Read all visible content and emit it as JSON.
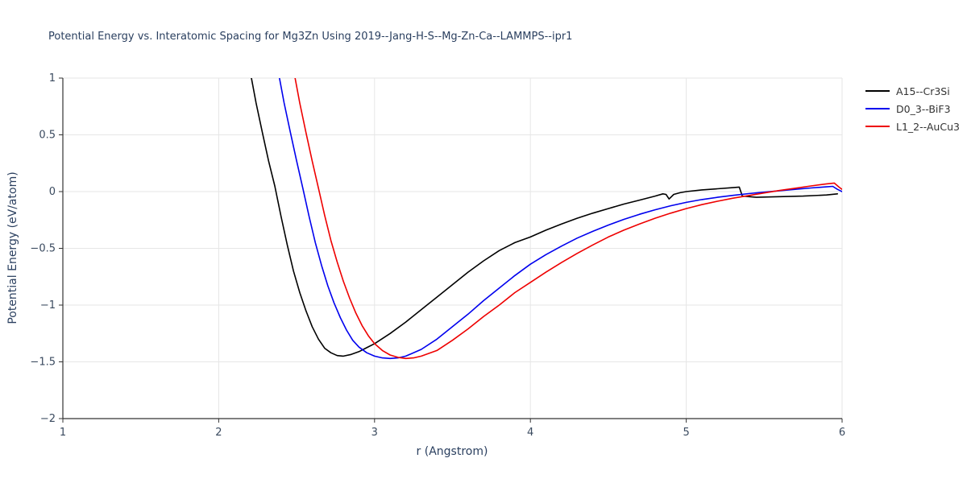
{
  "style": {
    "background": "#ffffff",
    "grid_color": "#e6e6e6",
    "spine_color": "#333333",
    "title_color": "#2a3f5f",
    "tick_label_color": "#3a4a5f"
  },
  "chart_data": {
    "type": "line",
    "title": "Potential Energy vs. Interatomic Spacing for Mg3Zn Using 2019--Jang-H-S--Mg-Zn-Ca--LAMMPS--ipr1",
    "xlabel": "r (Angstrom)",
    "ylabel": "Potential Energy (eV/atom)",
    "xlim": [
      1,
      6
    ],
    "ylim": [
      -2,
      1
    ],
    "xticks": [
      1,
      2,
      3,
      4,
      5,
      6
    ],
    "yticks": [
      -2,
      -1.5,
      -1,
      -0.5,
      0,
      0.5,
      1
    ],
    "xtick_labels": [
      "1",
      "2",
      "3",
      "4",
      "5",
      "6"
    ],
    "ytick_labels": [
      "−2",
      "−1.5",
      "−1",
      "−0.5",
      "0",
      "0.5",
      "1"
    ],
    "grid": true,
    "legend_position": "top-right-outside",
    "series": [
      {
        "name": "A15--Cr3Si",
        "color": "#000000",
        "points": [
          [
            2.18,
            1.25
          ],
          [
            2.21,
            1.0
          ],
          [
            2.24,
            0.78
          ],
          [
            2.28,
            0.52
          ],
          [
            2.32,
            0.27
          ],
          [
            2.36,
            0.05
          ],
          [
            2.4,
            -0.22
          ],
          [
            2.44,
            -0.47
          ],
          [
            2.48,
            -0.7
          ],
          [
            2.52,
            -0.89
          ],
          [
            2.56,
            -1.05
          ],
          [
            2.6,
            -1.19
          ],
          [
            2.64,
            -1.3
          ],
          [
            2.68,
            -1.38
          ],
          [
            2.72,
            -1.42
          ],
          [
            2.76,
            -1.445
          ],
          [
            2.8,
            -1.45
          ],
          [
            2.85,
            -1.435
          ],
          [
            2.9,
            -1.41
          ],
          [
            2.95,
            -1.375
          ],
          [
            3.0,
            -1.34
          ],
          [
            3.1,
            -1.25
          ],
          [
            3.2,
            -1.15
          ],
          [
            3.3,
            -1.04
          ],
          [
            3.4,
            -0.93
          ],
          [
            3.5,
            -0.82
          ],
          [
            3.6,
            -0.71
          ],
          [
            3.7,
            -0.61
          ],
          [
            3.8,
            -0.52
          ],
          [
            3.9,
            -0.45
          ],
          [
            4.0,
            -0.4
          ],
          [
            4.1,
            -0.34
          ],
          [
            4.2,
            -0.285
          ],
          [
            4.3,
            -0.235
          ],
          [
            4.4,
            -0.19
          ],
          [
            4.5,
            -0.15
          ],
          [
            4.6,
            -0.11
          ],
          [
            4.7,
            -0.075
          ],
          [
            4.8,
            -0.04
          ],
          [
            4.85,
            -0.02
          ],
          [
            4.87,
            -0.025
          ],
          [
            4.89,
            -0.065
          ],
          [
            4.92,
            -0.025
          ],
          [
            4.96,
            -0.01
          ],
          [
            5.0,
            0.0
          ],
          [
            5.1,
            0.015
          ],
          [
            5.2,
            0.025
          ],
          [
            5.3,
            0.035
          ],
          [
            5.34,
            0.04
          ],
          [
            5.36,
            -0.04
          ],
          [
            5.45,
            -0.05
          ],
          [
            5.6,
            -0.045
          ],
          [
            5.75,
            -0.04
          ],
          [
            5.9,
            -0.03
          ],
          [
            5.97,
            -0.02
          ]
        ]
      },
      {
        "name": "D0_3--BiF3",
        "color": "#0000ee",
        "points": [
          [
            2.36,
            1.25
          ],
          [
            2.39,
            1.0
          ],
          [
            2.42,
            0.78
          ],
          [
            2.46,
            0.52
          ],
          [
            2.5,
            0.27
          ],
          [
            2.54,
            0.03
          ],
          [
            2.58,
            -0.22
          ],
          [
            2.62,
            -0.45
          ],
          [
            2.66,
            -0.65
          ],
          [
            2.7,
            -0.83
          ],
          [
            2.74,
            -0.98
          ],
          [
            2.78,
            -1.11
          ],
          [
            2.82,
            -1.22
          ],
          [
            2.86,
            -1.31
          ],
          [
            2.9,
            -1.37
          ],
          [
            2.95,
            -1.42
          ],
          [
            3.0,
            -1.45
          ],
          [
            3.05,
            -1.465
          ],
          [
            3.1,
            -1.47
          ],
          [
            3.15,
            -1.465
          ],
          [
            3.2,
            -1.45
          ],
          [
            3.3,
            -1.39
          ],
          [
            3.4,
            -1.3
          ],
          [
            3.5,
            -1.19
          ],
          [
            3.6,
            -1.08
          ],
          [
            3.7,
            -0.96
          ],
          [
            3.8,
            -0.85
          ],
          [
            3.9,
            -0.74
          ],
          [
            4.0,
            -0.64
          ],
          [
            4.1,
            -0.555
          ],
          [
            4.2,
            -0.48
          ],
          [
            4.3,
            -0.41
          ],
          [
            4.4,
            -0.35
          ],
          [
            4.5,
            -0.295
          ],
          [
            4.6,
            -0.245
          ],
          [
            4.7,
            -0.2
          ],
          [
            4.8,
            -0.16
          ],
          [
            4.9,
            -0.125
          ],
          [
            5.0,
            -0.095
          ],
          [
            5.1,
            -0.07
          ],
          [
            5.2,
            -0.05
          ],
          [
            5.3,
            -0.033
          ],
          [
            5.4,
            -0.018
          ],
          [
            5.5,
            -0.005
          ],
          [
            5.6,
            0.008
          ],
          [
            5.7,
            0.02
          ],
          [
            5.8,
            0.032
          ],
          [
            5.9,
            0.042
          ],
          [
            5.94,
            0.046
          ],
          [
            5.97,
            0.02
          ],
          [
            6.0,
            0.0
          ]
        ]
      },
      {
        "name": "L1_2--AuCu3",
        "color": "#ee0000",
        "points": [
          [
            2.46,
            1.25
          ],
          [
            2.49,
            1.0
          ],
          [
            2.52,
            0.78
          ],
          [
            2.56,
            0.52
          ],
          [
            2.6,
            0.27
          ],
          [
            2.64,
            0.03
          ],
          [
            2.68,
            -0.21
          ],
          [
            2.72,
            -0.43
          ],
          [
            2.76,
            -0.62
          ],
          [
            2.8,
            -0.79
          ],
          [
            2.84,
            -0.94
          ],
          [
            2.88,
            -1.07
          ],
          [
            2.92,
            -1.18
          ],
          [
            2.96,
            -1.27
          ],
          [
            3.0,
            -1.34
          ],
          [
            3.05,
            -1.4
          ],
          [
            3.1,
            -1.44
          ],
          [
            3.15,
            -1.46
          ],
          [
            3.2,
            -1.47
          ],
          [
            3.25,
            -1.465
          ],
          [
            3.3,
            -1.45
          ],
          [
            3.4,
            -1.4
          ],
          [
            3.5,
            -1.31
          ],
          [
            3.6,
            -1.21
          ],
          [
            3.7,
            -1.1
          ],
          [
            3.8,
            -1.0
          ],
          [
            3.9,
            -0.89
          ],
          [
            4.0,
            -0.8
          ],
          [
            4.1,
            -0.71
          ],
          [
            4.2,
            -0.625
          ],
          [
            4.3,
            -0.545
          ],
          [
            4.4,
            -0.47
          ],
          [
            4.5,
            -0.4
          ],
          [
            4.6,
            -0.34
          ],
          [
            4.7,
            -0.285
          ],
          [
            4.8,
            -0.235
          ],
          [
            4.9,
            -0.19
          ],
          [
            5.0,
            -0.15
          ],
          [
            5.1,
            -0.115
          ],
          [
            5.2,
            -0.085
          ],
          [
            5.3,
            -0.058
          ],
          [
            5.4,
            -0.035
          ],
          [
            5.5,
            -0.012
          ],
          [
            5.6,
            0.01
          ],
          [
            5.7,
            0.03
          ],
          [
            5.8,
            0.05
          ],
          [
            5.9,
            0.068
          ],
          [
            5.95,
            0.075
          ],
          [
            5.98,
            0.04
          ],
          [
            6.0,
            0.02
          ]
        ]
      }
    ]
  }
}
